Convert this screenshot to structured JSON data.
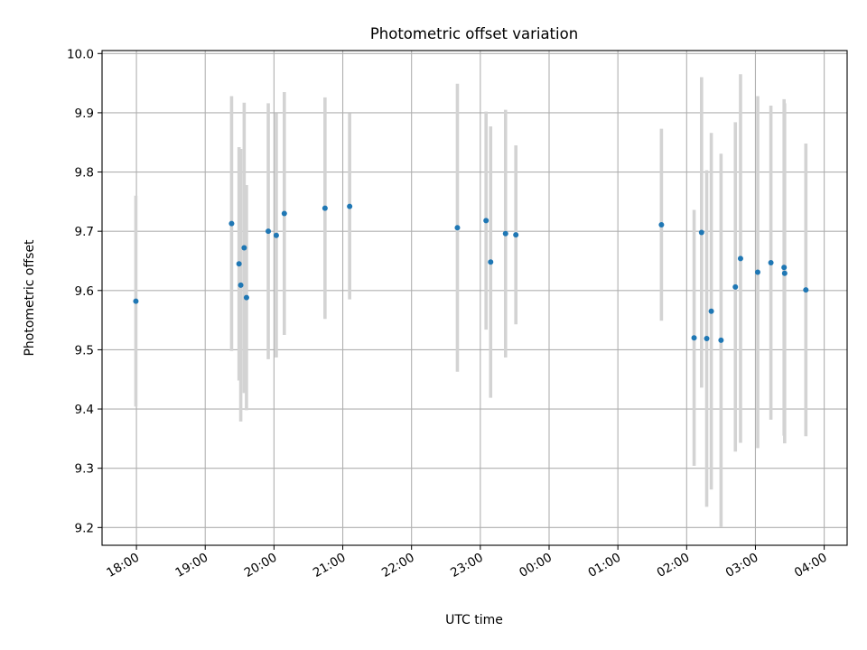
{
  "chart_data": {
    "type": "scatter",
    "title": "Photometric offset variation",
    "xlabel": "UTC time",
    "ylabel": "Photometric offset",
    "xlim": [
      "2000-01-01T17:30:00",
      "2000-01-02T04:20:00"
    ],
    "ylim": [
      9.17,
      10.005
    ],
    "grid": true,
    "x_ticks": [
      {
        "t": "2000-01-01T18:00:00",
        "label": "18:00"
      },
      {
        "t": "2000-01-01T19:00:00",
        "label": "19:00"
      },
      {
        "t": "2000-01-01T20:00:00",
        "label": "20:00"
      },
      {
        "t": "2000-01-01T21:00:00",
        "label": "21:00"
      },
      {
        "t": "2000-01-01T22:00:00",
        "label": "22:00"
      },
      {
        "t": "2000-01-01T23:00:00",
        "label": "23:00"
      },
      {
        "t": "2000-01-02T00:00:00",
        "label": "00:00"
      },
      {
        "t": "2000-01-02T01:00:00",
        "label": "01:00"
      },
      {
        "t": "2000-01-02T02:00:00",
        "label": "02:00"
      },
      {
        "t": "2000-01-02T03:00:00",
        "label": "03:00"
      },
      {
        "t": "2000-01-02T04:00:00",
        "label": "04:00"
      }
    ],
    "y_ticks": [
      {
        "v": 9.2,
        "label": "9.2"
      },
      {
        "v": 9.3,
        "label": "9.3"
      },
      {
        "v": 9.4,
        "label": "9.4"
      },
      {
        "v": 9.5,
        "label": "9.5"
      },
      {
        "v": 9.6,
        "label": "9.6"
      },
      {
        "v": 9.7,
        "label": "9.7"
      },
      {
        "v": 9.8,
        "label": "9.8"
      },
      {
        "v": 9.9,
        "label": "9.9"
      },
      {
        "v": 10.0,
        "label": "10.0"
      }
    ],
    "marker_color": "#1f77b4",
    "errorbar_color": "#d3d3d3",
    "points": [
      {
        "t": "2000-01-01T17:59:30",
        "y": 9.582,
        "err": 0.178
      },
      {
        "t": "2000-01-01T19:23:00",
        "y": 9.713,
        "err": 0.215
      },
      {
        "t": "2000-01-01T19:29:30",
        "y": 9.645,
        "err": 0.197
      },
      {
        "t": "2000-01-01T19:31:00",
        "y": 9.609,
        "err": 0.23
      },
      {
        "t": "2000-01-01T19:34:00",
        "y": 9.672,
        "err": 0.245
      },
      {
        "t": "2000-01-01T19:36:00",
        "y": 9.588,
        "err": 0.19
      },
      {
        "t": "2000-01-01T19:55:00",
        "y": 9.7,
        "err": 0.216
      },
      {
        "t": "2000-01-01T20:02:00",
        "y": 9.693,
        "err": 0.206
      },
      {
        "t": "2000-01-01T20:09:00",
        "y": 9.73,
        "err": 0.205
      },
      {
        "t": "2000-01-01T20:44:30",
        "y": 9.739,
        "err": 0.187
      },
      {
        "t": "2000-01-01T21:06:00",
        "y": 9.742,
        "err": 0.157
      },
      {
        "t": "2000-01-01T22:40:00",
        "y": 9.706,
        "err": 0.243
      },
      {
        "t": "2000-01-01T23:05:00",
        "y": 9.718,
        "err": 0.184
      },
      {
        "t": "2000-01-01T23:09:00",
        "y": 9.648,
        "err": 0.229
      },
      {
        "t": "2000-01-01T23:22:00",
        "y": 9.696,
        "err": 0.209
      },
      {
        "t": "2000-01-01T23:31:00",
        "y": 9.694,
        "err": 0.151
      },
      {
        "t": "2000-01-02T01:38:00",
        "y": 9.711,
        "err": 0.162
      },
      {
        "t": "2000-01-02T02:06:30",
        "y": 9.52,
        "err": 0.216
      },
      {
        "t": "2000-01-02T02:13:00",
        "y": 9.698,
        "err": 0.262
      },
      {
        "t": "2000-01-02T02:17:30",
        "y": 9.519,
        "err": 0.284
      },
      {
        "t": "2000-01-02T02:21:30",
        "y": 9.565,
        "err": 0.301
      },
      {
        "t": "2000-01-02T02:30:00",
        "y": 9.516,
        "err": 0.315
      },
      {
        "t": "2000-01-02T02:42:30",
        "y": 9.606,
        "err": 0.278
      },
      {
        "t": "2000-01-02T02:47:00",
        "y": 9.654,
        "err": 0.311
      },
      {
        "t": "2000-01-02T03:02:00",
        "y": 9.631,
        "err": 0.297
      },
      {
        "t": "2000-01-02T03:13:30",
        "y": 9.647,
        "err": 0.265
      },
      {
        "t": "2000-01-02T03:25:00",
        "y": 9.639,
        "err": 0.284
      },
      {
        "t": "2000-01-02T03:25:30",
        "y": 9.629,
        "err": 0.287
      },
      {
        "t": "2000-01-02T03:44:00",
        "y": 9.601,
        "err": 0.247
      }
    ]
  }
}
